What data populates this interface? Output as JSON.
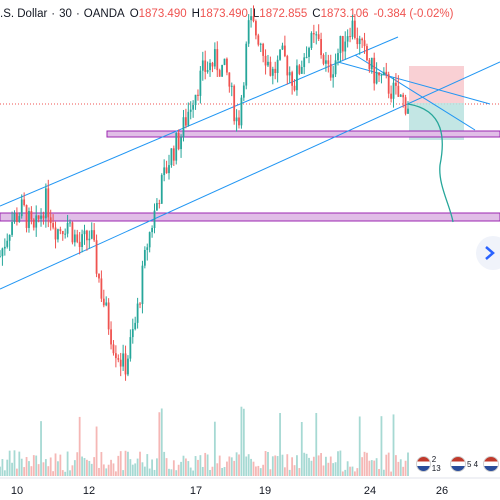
{
  "legend": {
    "symbol": ".S. Dollar",
    "interval": "30",
    "source": "OANDA",
    "sep": "·",
    "open_key": "O",
    "open": "1873.490",
    "high_key": "H",
    "high": "1873.490",
    "low_key": "L",
    "low": "1872.855",
    "close_key": "C",
    "close": "1873.106",
    "change": "-0.384 (-0.02%)"
  },
  "event_badges": [
    "2 13",
    "5 4"
  ],
  "icons": {
    "play": "play-arrow-icon",
    "flag": "us-flag-icon"
  },
  "colors": {
    "up": "#26a69a",
    "down": "#ef5350",
    "channel": "#2196f3",
    "zone": "#9c27b0",
    "zone_fill": "#e1bee7",
    "projection": "#26a69a"
  },
  "chart_data": {
    "type": "candlestick",
    "x_tick_labels": [
      "10",
      "12",
      "17",
      "19",
      "24",
      "26"
    ],
    "y_range_approx": [
      1800,
      1900
    ],
    "last_price": 1873.106,
    "volume_shown": true,
    "price_path": [
      1838,
      1846,
      1849,
      1843,
      1851,
      1844,
      1846,
      1840,
      1843,
      1829,
      1818,
      1812,
      1823,
      1841,
      1852,
      1861,
      1866,
      1875,
      1881,
      1883,
      1880,
      1868,
      1892,
      1888,
      1880,
      1884,
      1878,
      1886,
      1888,
      1880,
      1886,
      1892,
      1885,
      1880,
      1878,
      1875,
      1873
    ],
    "zones": [
      {
        "name": "upper support zone",
        "price_range": [
          1871,
          1873
        ]
      },
      {
        "name": "lower support zone",
        "price_range": [
          1850,
          1852
        ]
      }
    ],
    "channel": "ascending parallel channel",
    "position_tool": {
      "type": "short",
      "entry": 1873.1,
      "stop": 1880,
      "target": 1864
    },
    "projection": "curve from entry down to lower support zone"
  }
}
